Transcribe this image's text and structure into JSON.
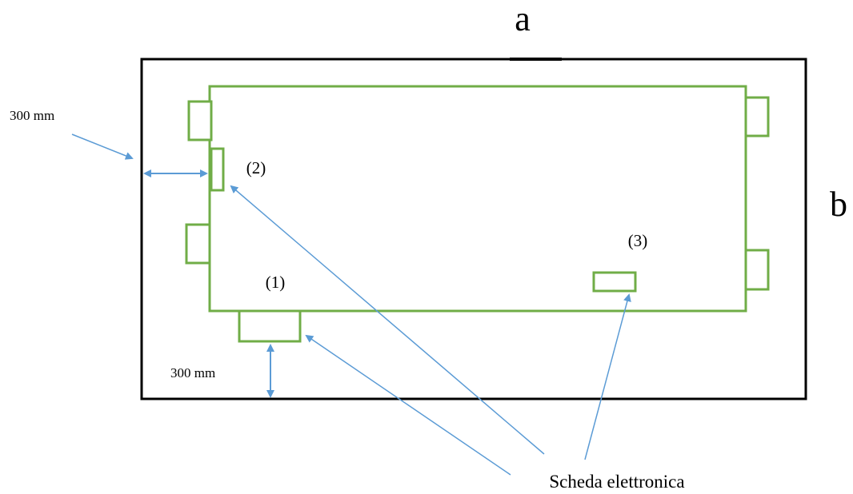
{
  "labels": {
    "side_a": "a",
    "side_b": "b",
    "distance_left": "300 mm",
    "distance_bottom": "300 mm",
    "component_1": "(1)",
    "component_2": "(2)",
    "component_3": "(3)",
    "caption": "Scheda elettronica"
  },
  "colors": {
    "outer_frame": "#000000",
    "inner_board": "#70ad47",
    "arrow": "#5b9bd5"
  }
}
